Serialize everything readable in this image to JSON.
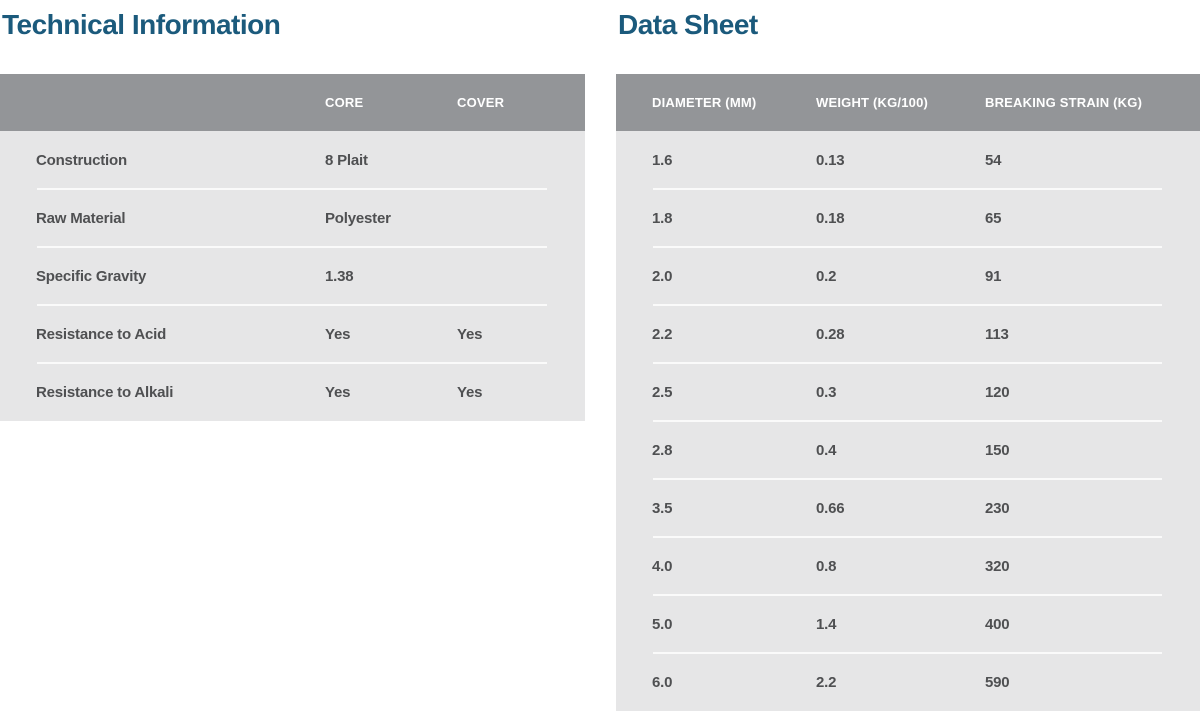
{
  "colors": {
    "title": "#1b5a7c",
    "header_bg": "#939598",
    "header_text": "#ffffff",
    "body_bg": "#e6e6e7",
    "body_text": "#4f5052",
    "separator": "#fafafa",
    "page_bg": "#ffffff"
  },
  "technical_information": {
    "title": "Technical Information",
    "columns": [
      "",
      "CORE",
      "COVER"
    ],
    "rows": [
      {
        "label": "Construction",
        "core": "8 Plait",
        "cover": ""
      },
      {
        "label": "Raw Material",
        "core": "Polyester",
        "cover": ""
      },
      {
        "label": "Specific Gravity",
        "core": "1.38",
        "cover": ""
      },
      {
        "label": "Resistance to Acid",
        "core": "Yes",
        "cover": "Yes"
      },
      {
        "label": "Resistance to Alkali",
        "core": "Yes",
        "cover": "Yes"
      }
    ]
  },
  "data_sheet": {
    "title": "Data Sheet",
    "columns": [
      "DIAMETER (MM)",
      "WEIGHT (KG/100)",
      "BREAKING STRAIN (KG)"
    ],
    "rows": [
      {
        "diameter": "1.6",
        "weight": "0.13",
        "breaking_strain": "54"
      },
      {
        "diameter": "1.8",
        "weight": "0.18",
        "breaking_strain": "65"
      },
      {
        "diameter": "2.0",
        "weight": "0.2",
        "breaking_strain": "91"
      },
      {
        "diameter": "2.2",
        "weight": "0.28",
        "breaking_strain": "113"
      },
      {
        "diameter": "2.5",
        "weight": "0.3",
        "breaking_strain": "120"
      },
      {
        "diameter": "2.8",
        "weight": "0.4",
        "breaking_strain": "150"
      },
      {
        "diameter": "3.5",
        "weight": "0.66",
        "breaking_strain": "230"
      },
      {
        "diameter": "4.0",
        "weight": "0.8",
        "breaking_strain": "320"
      },
      {
        "diameter": "5.0",
        "weight": "1.4",
        "breaking_strain": "400"
      },
      {
        "diameter": "6.0",
        "weight": "2.2",
        "breaking_strain": "590"
      }
    ]
  }
}
